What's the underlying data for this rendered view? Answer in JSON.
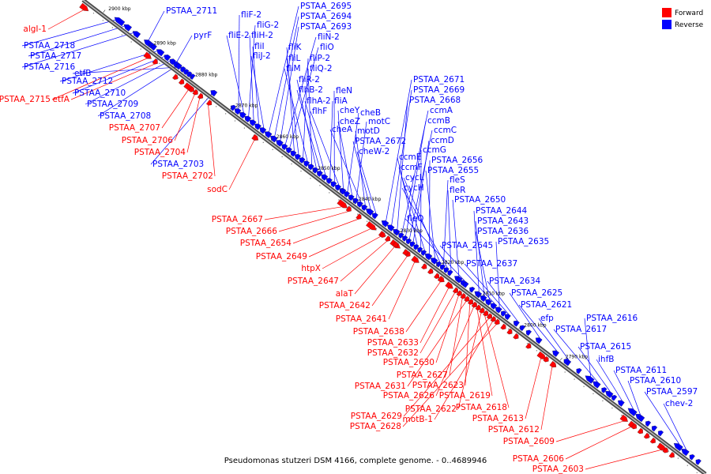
{
  "caption": "Pseudomonas stutzeri DSM 4166, complete genome. - 0..4689946",
  "legend": [
    {
      "label": "Forward",
      "color": "#ff0000"
    },
    {
      "label": "Reverse",
      "color": "#0000ff"
    }
  ],
  "colors": {
    "forward": "#ff0000",
    "reverse": "#0000ff",
    "backbone": "#555555"
  },
  "ticks": [
    "2900 kbp",
    "2890 kbp",
    "2880 kbp",
    "2870 kbp",
    "2860 kbp",
    "2850 kbp",
    "2840 kbp",
    "2830 kbp",
    "2820 kbp",
    "2810 kbp",
    "2800 kbp",
    "2790 kbp"
  ],
  "reverse_genes": [
    "PSTAA_2711",
    "pyrF",
    "PSTAA_2718",
    "PSTAA_2717",
    "PSTAA_2716",
    "etfB",
    "PSTAA_2712",
    "PSTAA_2710",
    "PSTAA_2709",
    "PSTAA_2708",
    "PSTAA_2703",
    "fliF-2",
    "fliE-2",
    "fliG-2",
    "fliH-2",
    "fliI",
    "fliJ-2",
    "PSTAA_2695",
    "PSTAA_2694",
    "PSTAA_2693",
    "fliN-2",
    "fliO",
    "fliK",
    "fliL",
    "fliP-2",
    "fliM",
    "fliQ-2",
    "fliR-2",
    "flhB-2",
    "flhA-2",
    "fliA",
    "fleN",
    "flhF",
    "cheY",
    "cheB",
    "cheZ",
    "motC",
    "cheA",
    "motD",
    "PSTAA_2672",
    "cheW-2",
    "PSTAA_2671",
    "PSTAA_2669",
    "PSTAA_2668",
    "ccmA",
    "ccmB",
    "ccmC",
    "ccmD",
    "ccmE",
    "ccmG",
    "ccmF",
    "PSTAA_2656",
    "PSTAA_2655",
    "cycL",
    "fleS",
    "cycH",
    "fleR",
    "PSTAA_2650",
    "fleQ",
    "PSTAA_2644",
    "PSTAA_2643",
    "PSTAA_2636",
    "PSTAA_2645",
    "PSTAA_2635",
    "PSTAA_2637",
    "PSTAA_2634",
    "PSTAA_2625",
    "PSTAA_2621",
    "efp",
    "PSTAA_2616",
    "PSTAA_2617",
    "PSTAA_2615",
    "ihfB",
    "PSTAA_2611",
    "PSTAA_2610",
    "PSTAA_2597",
    "chev-2"
  ],
  "forward_genes": [
    "algI-1",
    "PSTAA_2715",
    "etfA",
    "PSTAA_2707",
    "PSTAA_2706",
    "PSTAA_2704",
    "PSTAA_2702",
    "sodC",
    "PSTAA_2667",
    "PSTAA_2666",
    "PSTAA_2654",
    "PSTAA_2649",
    "htpX",
    "PSTAA_2647",
    "alaT",
    "PSTAA_2642",
    "PSTAA_2641",
    "PSTAA_2638",
    "PSTAA_2633",
    "PSTAA_2632",
    "PSTAA_2630",
    "PSTAA_2627",
    "PSTAA_2631",
    "PSTAA_2623",
    "PSTAA_2626",
    "PSTAA_2619",
    "PSTAA_2622",
    "PSTAA_2618",
    "PSTAA_2629",
    "motB-1",
    "PSTAA_2628",
    "PSTAA_2613",
    "PSTAA_2612",
    "PSTAA_2609",
    "PSTAA_2606",
    "PSTAA_2603"
  ]
}
